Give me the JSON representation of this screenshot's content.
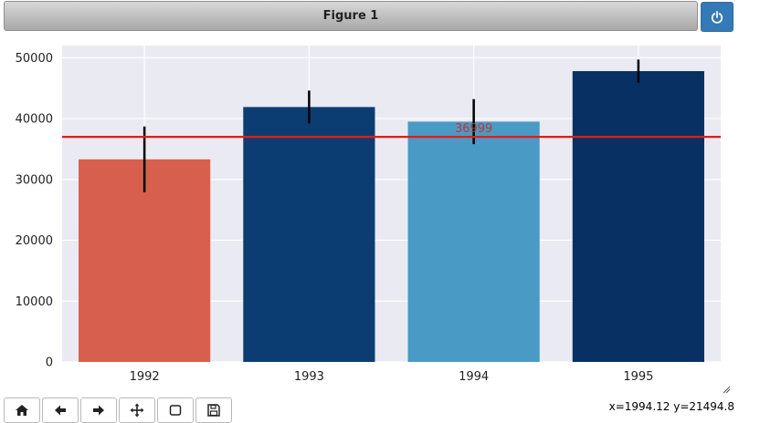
{
  "window": {
    "title": "Figure 1"
  },
  "toolbar": {
    "buttons": [
      {
        "name": "home-button",
        "icon": "home-icon"
      },
      {
        "name": "back-button",
        "icon": "arrow-left-icon"
      },
      {
        "name": "forward-button",
        "icon": "arrow-right-icon"
      },
      {
        "name": "pan-button",
        "icon": "move-icon"
      },
      {
        "name": "zoom-button",
        "icon": "zoom-rect-icon"
      },
      {
        "name": "save-button",
        "icon": "save-icon"
      }
    ]
  },
  "status": {
    "coords": "x=1994.12 y=21494.8"
  },
  "colors": {
    "axes_bg": "#eaeaf2",
    "hline": "#e41a1c",
    "annotation": "#c0392b"
  },
  "chart_data": {
    "type": "bar",
    "categories": [
      "1992",
      "1993",
      "1994",
      "1995"
    ],
    "values": [
      33300,
      41900,
      39500,
      47800
    ],
    "errors": [
      5400,
      2700,
      3700,
      1900
    ],
    "bar_colors": [
      "#d6604d",
      "#0b3d73",
      "#4a9ac6",
      "#083063"
    ],
    "ylim": [
      0,
      52000
    ],
    "yticks": [
      0,
      10000,
      20000,
      30000,
      40000,
      50000
    ],
    "hline": {
      "value": 36999,
      "label": "36999"
    },
    "grid": true,
    "title": "",
    "xlabel": "",
    "ylabel": ""
  }
}
